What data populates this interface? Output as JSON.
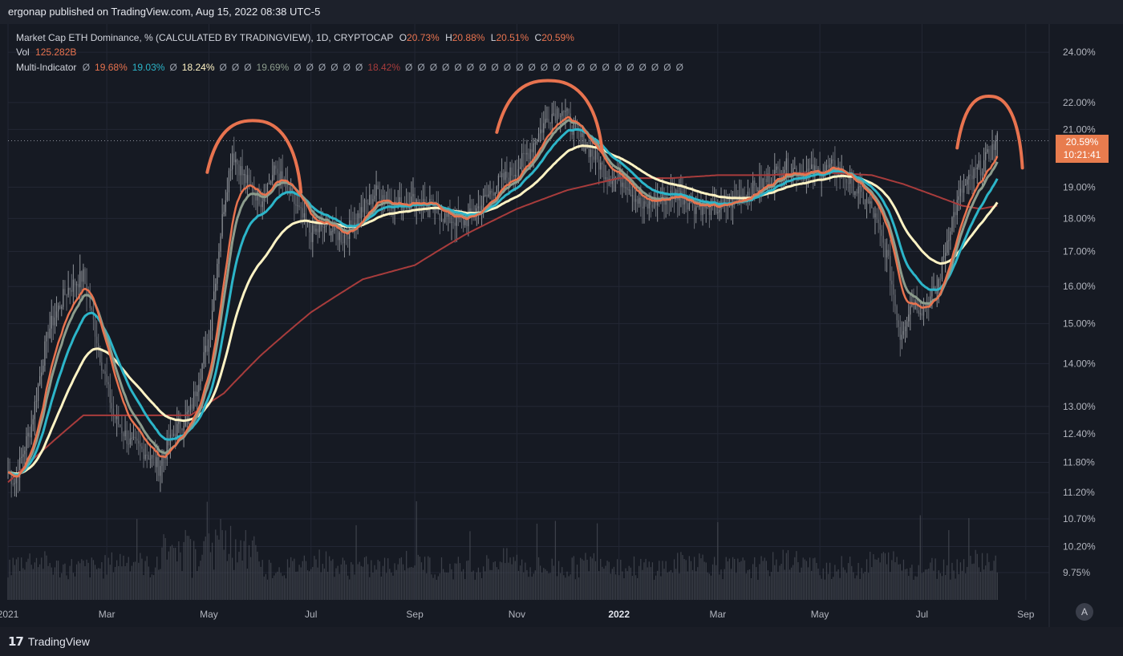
{
  "header": {
    "publisher": "ergonap published on TradingView.com, Aug 15, 2022 08:38 UTC-5"
  },
  "legend": {
    "symbol": "Market Cap ETH Dominance, % (CALCULATED BY TRADINGVIEW), 1D, CRYPTOCAP",
    "ohlc": [
      {
        "label": "O",
        "value": "20.73%"
      },
      {
        "label": "H",
        "value": "20.88%"
      },
      {
        "label": "L",
        "value": "20.51%"
      },
      {
        "label": "C",
        "value": "20.59%"
      }
    ],
    "vol_label": "Vol",
    "vol_value": "125.282B",
    "multi_label": "Multi-Indicator",
    "multi_values": [
      "Ø",
      "19.68%",
      "19.03%",
      "Ø",
      "18.24%",
      "Ø",
      "Ø",
      "Ø",
      "19.69%",
      "Ø",
      "Ø",
      "Ø",
      "Ø",
      "Ø",
      "Ø",
      "18.42%",
      "Ø",
      "Ø",
      "Ø",
      "Ø",
      "Ø",
      "Ø",
      "Ø",
      "Ø",
      "Ø",
      "Ø",
      "Ø",
      "Ø",
      "Ø",
      "Ø",
      "Ø",
      "Ø",
      "Ø",
      "Ø",
      "Ø",
      "Ø",
      "Ø",
      "Ø",
      "Ø"
    ],
    "multi_colors": [
      "#9aa0ab",
      "#e8734f",
      "#2cb5c9",
      "#9aa0ab",
      "#fff3c4",
      "#9aa0ab",
      "#9aa0ab",
      "#9aa0ab",
      "#8c9c8c",
      "#9aa0ab",
      "#9aa0ab",
      "#9aa0ab",
      "#9aa0ab",
      "#9aa0ab",
      "#9aa0ab",
      "#a83c3c",
      "#9aa0ab",
      "#9aa0ab",
      "#9aa0ab",
      "#9aa0ab",
      "#9aa0ab",
      "#9aa0ab",
      "#9aa0ab",
      "#9aa0ab",
      "#9aa0ab",
      "#9aa0ab",
      "#9aa0ab",
      "#9aa0ab",
      "#9aa0ab",
      "#9aa0ab",
      "#9aa0ab",
      "#9aa0ab",
      "#9aa0ab",
      "#9aa0ab",
      "#9aa0ab",
      "#9aa0ab",
      "#9aa0ab",
      "#9aa0ab",
      "#9aa0ab"
    ]
  },
  "price_tag": {
    "price": "20.59%",
    "countdown": "10:21:41"
  },
  "footer": {
    "brand": "TradingView",
    "auto_label": "A"
  },
  "colors": {
    "background": "#161a23",
    "grid": "#232734",
    "axis_text": "#b2b5be",
    "candle_up": "#8e9298",
    "candle_down": "#6a6e76",
    "volume": "#4a4d57",
    "ema_fast": "#e8734f",
    "ema_mid": "#2cb5c9",
    "ema_slow": "#fff3c4",
    "ema_green": "#8c9c8c",
    "ma_long": "#a83c3c",
    "annotation": "#e8734f"
  },
  "chart_data": {
    "type": "candlestick",
    "title": "Market Cap ETH Dominance, % (CALCULATED BY TRADINGVIEW)",
    "y_scale": "log",
    "ylim": [
      9.3,
      25.2
    ],
    "y_ticks": [
      "24.00%",
      "22.00%",
      "21.00%",
      "19.00%",
      "18.00%",
      "17.00%",
      "16.00%",
      "15.00%",
      "14.00%",
      "13.00%",
      "12.40%",
      "11.80%",
      "11.20%",
      "10.70%",
      "10.20%",
      "9.75%"
    ],
    "y_tick_values": [
      24.0,
      22.0,
      21.0,
      19.0,
      18.0,
      17.0,
      16.0,
      15.0,
      14.0,
      13.0,
      12.4,
      11.8,
      11.2,
      10.7,
      10.2,
      9.75
    ],
    "x_ticks": [
      "2021",
      "Mar",
      "May",
      "Jul",
      "Sep",
      "Nov",
      "2022",
      "Mar",
      "May",
      "Jul",
      "Sep"
    ],
    "x_tick_dates": [
      "2021-01-01",
      "2021-03-01",
      "2021-05-01",
      "2021-07-01",
      "2021-09-01",
      "2021-11-01",
      "2022-01-01",
      "2022-03-01",
      "2022-05-01",
      "2022-07-01",
      "2022-09-01"
    ],
    "x_range": [
      "2021-01-01",
      "2022-09-15"
    ],
    "last_date": "2022-08-15",
    "last_close": 20.59,
    "close_keypoints": [
      [
        "2021-01-01",
        11.6
      ],
      [
        "2021-01-05",
        11.4
      ],
      [
        "2021-01-15",
        12.6
      ],
      [
        "2021-01-25",
        14.8
      ],
      [
        "2021-02-05",
        15.9
      ],
      [
        "2021-02-15",
        16.3
      ],
      [
        "2021-02-25",
        14.2
      ],
      [
        "2021-03-05",
        12.8
      ],
      [
        "2021-03-15",
        12.2
      ],
      [
        "2021-03-25",
        12.0
      ],
      [
        "2021-04-01",
        11.7
      ],
      [
        "2021-04-10",
        12.4
      ],
      [
        "2021-04-20",
        12.9
      ],
      [
        "2021-05-01",
        14.6
      ],
      [
        "2021-05-10",
        18.4
      ],
      [
        "2021-05-15",
        20.2
      ],
      [
        "2021-05-22",
        19.3
      ],
      [
        "2021-06-01",
        18.6
      ],
      [
        "2021-06-10",
        19.6
      ],
      [
        "2021-06-20",
        18.6
      ],
      [
        "2021-07-01",
        17.5
      ],
      [
        "2021-07-10",
        17.8
      ],
      [
        "2021-07-20",
        17.4
      ],
      [
        "2021-08-01",
        18.3
      ],
      [
        "2021-08-10",
        18.9
      ],
      [
        "2021-08-20",
        18.4
      ],
      [
        "2021-09-01",
        18.6
      ],
      [
        "2021-09-10",
        18.4
      ],
      [
        "2021-09-20",
        18.0
      ],
      [
        "2021-10-01",
        17.9
      ],
      [
        "2021-10-10",
        18.4
      ],
      [
        "2021-10-20",
        19.1
      ],
      [
        "2021-11-01",
        19.6
      ],
      [
        "2021-11-10",
        20.4
      ],
      [
        "2021-11-20",
        21.5
      ],
      [
        "2021-11-28",
        21.8
      ],
      [
        "2021-12-05",
        21.0
      ],
      [
        "2021-12-15",
        20.2
      ],
      [
        "2021-12-25",
        19.4
      ],
      [
        "2022-01-05",
        19.2
      ],
      [
        "2022-01-15",
        18.3
      ],
      [
        "2022-01-25",
        18.6
      ],
      [
        "2022-02-05",
        18.8
      ],
      [
        "2022-02-15",
        18.4
      ],
      [
        "2022-03-01",
        18.3
      ],
      [
        "2022-03-15",
        18.7
      ],
      [
        "2022-04-01",
        19.3
      ],
      [
        "2022-04-10",
        19.7
      ],
      [
        "2022-04-20",
        19.5
      ],
      [
        "2022-05-01",
        19.5
      ],
      [
        "2022-05-10",
        19.7
      ],
      [
        "2022-05-20",
        19.1
      ],
      [
        "2022-06-01",
        18.3
      ],
      [
        "2022-06-10",
        16.9
      ],
      [
        "2022-06-18",
        14.7
      ],
      [
        "2022-06-25",
        15.6
      ],
      [
        "2022-07-01",
        15.4
      ],
      [
        "2022-07-10",
        15.9
      ],
      [
        "2022-07-18",
        17.8
      ],
      [
        "2022-07-25",
        18.9
      ],
      [
        "2022-08-01",
        19.4
      ],
      [
        "2022-08-08",
        19.9
      ],
      [
        "2022-08-15",
        20.6
      ]
    ],
    "ma_long_keypoints": [
      [
        "2021-01-01",
        11.4
      ],
      [
        "2021-02-15",
        12.8
      ],
      [
        "2021-03-15",
        12.8
      ],
      [
        "2021-04-20",
        12.8
      ],
      [
        "2021-05-10",
        13.3
      ],
      [
        "2021-06-01",
        14.2
      ],
      [
        "2021-07-01",
        15.3
      ],
      [
        "2021-08-01",
        16.2
      ],
      [
        "2021-09-01",
        16.6
      ],
      [
        "2021-10-01",
        17.5
      ],
      [
        "2021-11-01",
        18.3
      ],
      [
        "2021-12-01",
        18.9
      ],
      [
        "2022-01-01",
        19.3
      ],
      [
        "2022-02-01",
        19.3
      ],
      [
        "2022-03-01",
        19.4
      ],
      [
        "2022-04-01",
        19.4
      ],
      [
        "2022-05-01",
        19.5
      ],
      [
        "2022-06-01",
        19.4
      ],
      [
        "2022-06-20",
        19.1
      ],
      [
        "2022-07-10",
        18.7
      ],
      [
        "2022-07-25",
        18.4
      ],
      [
        "2022-08-05",
        18.3
      ],
      [
        "2022-08-15",
        18.4
      ]
    ],
    "series": [
      {
        "value": 19.68
      },
      {
        "value": 19.03
      },
      {
        "value": 18.24
      },
      {
        "value": 19.69
      },
      {
        "value": 18.42
      }
    ],
    "annotation_arcs": [
      {
        "from": "2021-04-30",
        "to": "2021-06-25",
        "level": 20.9
      },
      {
        "from": "2021-10-20",
        "to": "2021-12-22",
        "level": 22.4
      },
      {
        "from": "2022-07-22",
        "to": "2022-08-30",
        "level": 21.8
      }
    ]
  }
}
